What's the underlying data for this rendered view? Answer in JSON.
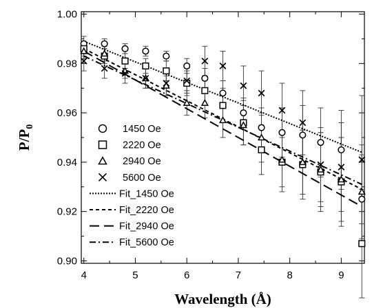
{
  "chart_data": {
    "type": "scatter",
    "xlabel": "Wavelength (Å)",
    "ylabel_main": "P/P",
    "ylabel_sub": "0",
    "xlim": [
      3.95,
      9.45
    ],
    "ylim": [
      0.899,
      1.001
    ],
    "xticks": [
      4,
      5,
      6,
      7,
      8,
      9
    ],
    "yticks": [
      0.9,
      0.92,
      0.94,
      0.96,
      0.98,
      1.0
    ],
    "ytick_labels": [
      "0.90",
      "0.92",
      "0.94",
      "0.96",
      "0.98",
      "1.00"
    ],
    "xtick_labels": [
      "4",
      "5",
      "6",
      "7",
      "8",
      "9"
    ],
    "grid": false,
    "legend_position": "lower-left",
    "series": [
      {
        "name": "1450 Oe",
        "marker": "circle",
        "x": [
          4.0,
          4.4,
          4.8,
          5.2,
          5.6,
          6.0,
          6.35,
          6.7,
          7.1,
          7.45,
          7.85,
          8.25,
          8.6,
          9.0,
          9.4
        ],
        "y": [
          0.988,
          0.988,
          0.986,
          0.985,
          0.983,
          0.979,
          0.974,
          0.968,
          0.96,
          0.954,
          0.952,
          0.951,
          0.948,
          0.945,
          0.925
        ],
        "err": [
          0.003,
          0.002,
          0.002,
          0.002,
          0.002,
          0.003,
          0.004,
          0.005,
          0.006,
          0.008,
          0.01,
          0.012,
          0.014,
          0.016,
          0.018
        ]
      },
      {
        "name": "2220 Oe",
        "marker": "square",
        "x": [
          4.0,
          4.4,
          4.8,
          5.2,
          5.6,
          6.0,
          6.35,
          6.7,
          7.1,
          7.45,
          7.85,
          8.25,
          8.6,
          9.0,
          9.4
        ],
        "y": [
          0.986,
          0.983,
          0.981,
          0.979,
          0.977,
          0.972,
          0.969,
          0.963,
          0.956,
          0.945,
          0.94,
          0.939,
          0.936,
          0.932,
          0.907
        ],
        "err": [
          0.003,
          0.003,
          0.003,
          0.003,
          0.004,
          0.005,
          0.006,
          0.007,
          0.009,
          0.01,
          0.012,
          0.014,
          0.016,
          0.018,
          0.022
        ]
      },
      {
        "name": "2940 Oe",
        "marker": "triangle",
        "x": [
          4.0,
          4.4,
          4.8,
          5.2,
          5.6,
          6.0,
          6.35,
          6.7,
          7.1,
          7.45,
          7.85,
          8.25,
          8.6,
          9.0,
          9.4
        ],
        "y": [
          0.985,
          0.984,
          0.977,
          0.974,
          0.971,
          0.964,
          0.964,
          0.957,
          0.955,
          0.95,
          0.941,
          0.94,
          0.937,
          0.933,
          0.928
        ],
        "err": [
          0.003,
          0.003,
          0.003,
          0.004,
          0.004,
          0.005,
          0.006,
          0.007,
          0.008,
          0.01,
          0.011,
          0.013,
          0.015,
          0.017,
          0.019
        ]
      },
      {
        "name": "5600 Oe",
        "marker": "x",
        "x": [
          4.0,
          4.4,
          4.8,
          5.2,
          5.6,
          6.0,
          6.35,
          6.7,
          7.1,
          7.45,
          7.85,
          8.25,
          8.6,
          9.0,
          9.4
        ],
        "y": [
          0.981,
          0.978,
          0.976,
          0.974,
          0.972,
          0.973,
          0.981,
          0.979,
          0.971,
          0.968,
          0.961,
          0.956,
          0.939,
          0.938,
          0.941
        ],
        "err": [
          0.004,
          0.004,
          0.004,
          0.004,
          0.005,
          0.005,
          0.006,
          0.006,
          0.008,
          0.009,
          0.011,
          0.013,
          0.015,
          0.018,
          0.026
        ]
      }
    ],
    "fits": [
      {
        "name": "Fit_1450 Oe",
        "dash": "dotted",
        "x": [
          4.0,
          9.4
        ],
        "y": [
          0.989,
          0.944
        ]
      },
      {
        "name": "Fit_2220 Oe",
        "dash": "short-dash",
        "x": [
          4.0,
          9.4
        ],
        "y": [
          0.986,
          0.929
        ]
      },
      {
        "name": "Fit_2940 Oe",
        "dash": "long-dash",
        "x": [
          4.0,
          9.4
        ],
        "y": [
          0.985,
          0.922
        ]
      },
      {
        "name": "Fit_5600 Oe",
        "dash": "dash-dot",
        "x": [
          4.0,
          9.4
        ],
        "y": [
          0.983,
          0.931
        ]
      }
    ]
  }
}
